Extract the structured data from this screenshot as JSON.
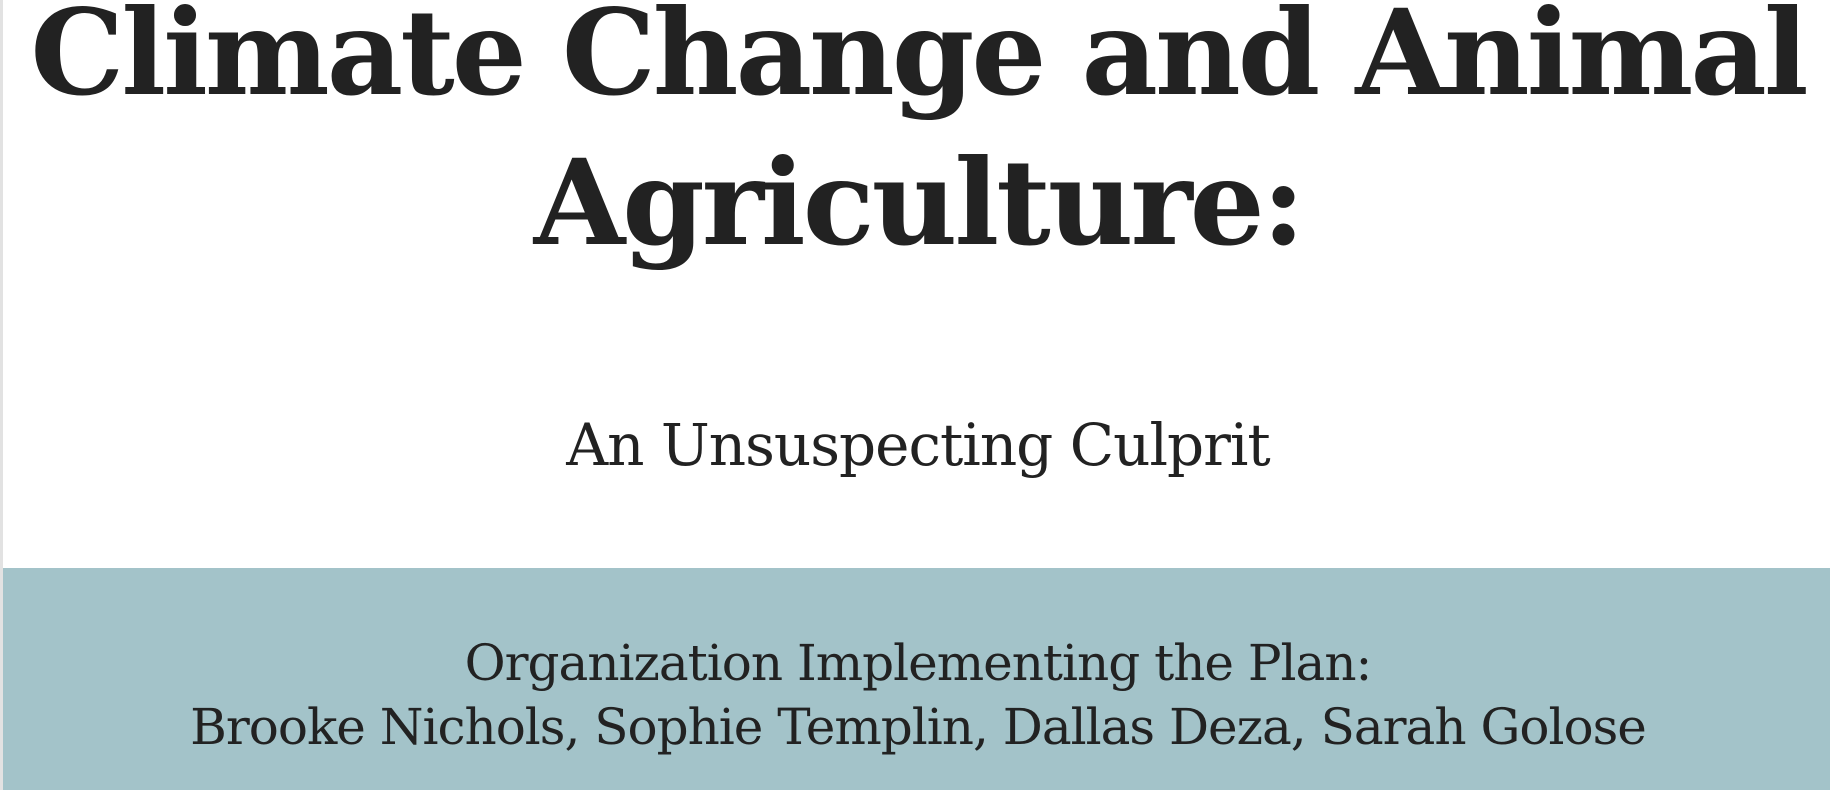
{
  "slide": {
    "title": "Climate Change and Animal Agriculture:",
    "subtitle": "An Unsuspecting Culprit",
    "organization_label": "Organization Implementing the Plan:",
    "members": "Brooke Nichols, Sophie Templin, Dallas Deza, Sarah Golose"
  },
  "colors": {
    "background": "#ffffff",
    "band": "#a3c3c9",
    "text": "#222222"
  }
}
